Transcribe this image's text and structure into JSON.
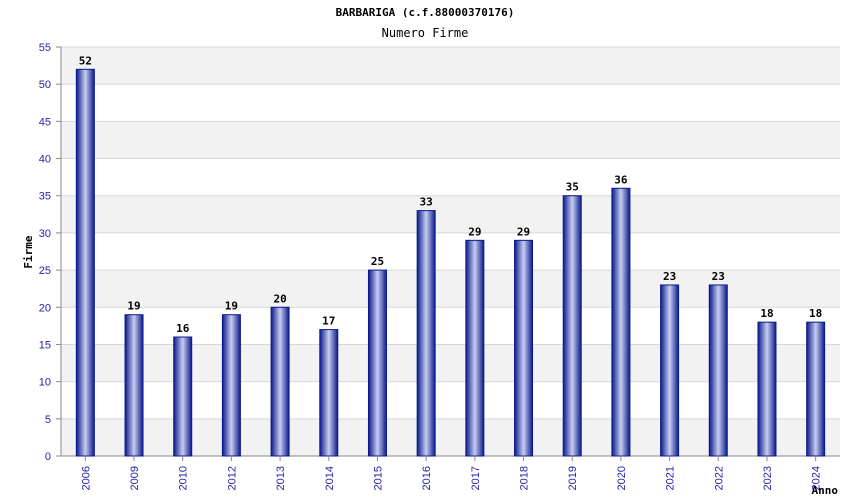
{
  "chart_data": {
    "type": "bar",
    "title": "BARBARIGA (c.f.88000370176)",
    "subtitle": "Numero Firme",
    "ylabel": "Firme",
    "xlabel": "Anno",
    "categories": [
      "2006",
      "2009",
      "2010",
      "2012",
      "2013",
      "2014",
      "2015",
      "2016",
      "2017",
      "2018",
      "2019",
      "2020",
      "2021",
      "2022",
      "2023",
      "2024"
    ],
    "values": [
      52,
      19,
      16,
      19,
      20,
      17,
      25,
      33,
      29,
      29,
      35,
      36,
      23,
      23,
      18,
      18
    ],
    "ylim": [
      0,
      55
    ],
    "yticks": [
      0,
      5,
      10,
      15,
      20,
      25,
      30,
      35,
      40,
      45,
      50,
      55
    ],
    "grid": true,
    "colors": {
      "bar_dark": "#0a1a8c",
      "bar_light": "#c8cdf0",
      "tick_label": "#2424a8",
      "band": "#f2f2f2",
      "grid": "#d8d8d8"
    }
  }
}
